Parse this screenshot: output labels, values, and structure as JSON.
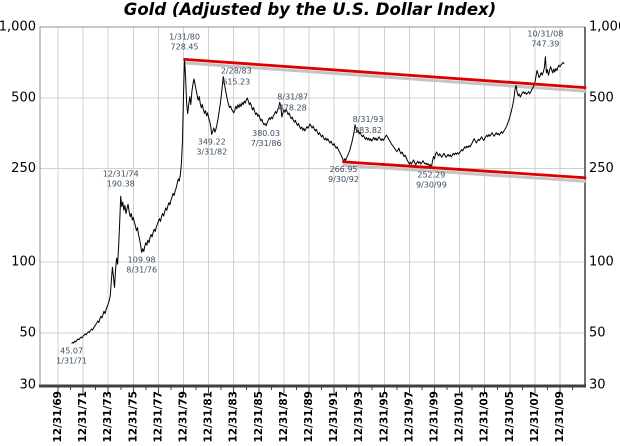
{
  "title": "Gold (Adjusted by the U.S. Dollar Index)",
  "colors": {
    "background": "#ffffff",
    "grid": "#d0d0d0",
    "frame": "#909090",
    "axis_bottom": "#404040",
    "axis_right": "#707070",
    "tick": "#404040",
    "price_line": "#000000",
    "trend_line": "#dd0000",
    "trend_shadow": "#c4c4c4",
    "annotation_text": "#3e4e63",
    "axis_text": "#000000"
  },
  "y_axis": {
    "scale": "log",
    "min": 30,
    "max": 1000,
    "tick_values": [
      1000,
      500,
      250,
      100,
      50,
      30
    ],
    "tick_labels": [
      "1,000",
      "500",
      "250",
      "100",
      "50",
      "30"
    ]
  },
  "x_axis": {
    "first_tick_year": 1970,
    "tick_interval_years": 2,
    "minor_tick_interval_years": 1,
    "tick_labels": [
      "12/31/69",
      "12/31/71",
      "12/31/73",
      "12/31/75",
      "12/31/77",
      "12/31/79",
      "12/31/81",
      "12/31/83",
      "12/31/85",
      "12/31/87",
      "12/31/89",
      "12/31/91",
      "12/31/93",
      "12/31/95",
      "12/31/97",
      "12/31/99",
      "12/31/01",
      "12/31/03",
      "12/31/05",
      "12/31/07",
      "12/31/09"
    ]
  },
  "chart_data": {
    "type": "line",
    "title": "Gold (Adjusted by the U.S. Dollar Index)",
    "xlabel": "",
    "ylabel": "",
    "ylim": [
      30,
      1000
    ],
    "y_scale": "log",
    "grid": true,
    "series": [
      {
        "name": "Gold adjusted by U.S. Dollar Index",
        "frequency": "monthly",
        "start_decimal_year": 1971.0833,
        "step_years": 0.0833333,
        "values": [
          45.07,
          45.6,
          45.2,
          46.1,
          45.8,
          46.5,
          47.1,
          46.7,
          47.4,
          48.0,
          47.6,
          48.4,
          48.9,
          49.5,
          49.0,
          49.9,
          50.6,
          50.2,
          51.1,
          51.9,
          51.4,
          52.5,
          53.3,
          54.1,
          55.0,
          56.2,
          55.3,
          57.2,
          58.8,
          57.8,
          59.8,
          61.8,
          60.4,
          62.8,
          64.8,
          66.4,
          68.5,
          72.0,
          83.0,
          95.0,
          87.0,
          78.0,
          92.0,
          104.0,
          98.0,
          118.0,
          148.0,
          190.38,
          172,
          180,
          166,
          174,
          161,
          169,
          176,
          164,
          156,
          161,
          151,
          155,
          148,
          143,
          136,
          140,
          131,
          125,
          118,
          109.98,
          114,
          111,
          117,
          121,
          118,
          124,
          121,
          127,
          131,
          128,
          134,
          138,
          135,
          141,
          145,
          149,
          153,
          149,
          156,
          161,
          157,
          164,
          170,
          166,
          173,
          179,
          175,
          183,
          189,
          196,
          192,
          200,
          207,
          216,
          226,
          221,
          236,
          262,
          330,
          512,
          728.45,
          610,
          475,
          428,
          468,
          505,
          468,
          532,
          570,
          601,
          572,
          543,
          514,
          488,
          506,
          474,
          453,
          469,
          444,
          429,
          441,
          419,
          431,
          411,
          399,
          378,
          349.22,
          361,
          372,
          357,
          367,
          386,
          406,
          436,
          466,
          502,
          556,
          615.23,
          576,
          546,
          514,
          489,
          469,
          454,
          461,
          447,
          439,
          431,
          441,
          461,
          449,
          467,
          454,
          471,
          459,
          477,
          467,
          484,
          474,
          489,
          499,
          484,
          467,
          477,
          459,
          444,
          454,
          437,
          424,
          431,
          417,
          424,
          411,
          399,
          405,
          391,
          384,
          389,
          380.03,
          391,
          401,
          411,
          404,
          414,
          407,
          419,
          427,
          437,
          429,
          444,
          454,
          478.28,
          461,
          414,
          431,
          444,
          434,
          447,
          437,
          424,
          431,
          417,
          407,
          414,
          401,
          394,
          401,
          389,
          381,
          389,
          377,
          369,
          376,
          364,
          371,
          361,
          369,
          377,
          371,
          379,
          387,
          379,
          372,
          379,
          369,
          361,
          367,
          357,
          349,
          355,
          347,
          341,
          347,
          337,
          331,
          337,
          329,
          335,
          327,
          321,
          327,
          319,
          314,
          319,
          311,
          305,
          309,
          301,
          295,
          289,
          283,
          277,
          266.95,
          275,
          271,
          278,
          284,
          291,
          299,
          311,
          323,
          339,
          356,
          383.82,
          369,
          357,
          364,
          351,
          357,
          347,
          341,
          347,
          339,
          333,
          339,
          331,
          337,
          329,
          335,
          327,
          333,
          339,
          331,
          337,
          329,
          335,
          341,
          335,
          329,
          335,
          329,
          335,
          341,
          347,
          341,
          335,
          329,
          323,
          317,
          313,
          309,
          304,
          299,
          295,
          299,
          305,
          295,
          289,
          294,
          287,
          281,
          285,
          277,
          271,
          266,
          261,
          266,
          261,
          267,
          272,
          265,
          259,
          264,
          269,
          263,
          267,
          261,
          265,
          270,
          265,
          261,
          264,
          259,
          262,
          257,
          260,
          252.29,
          268,
          281,
          275,
          287,
          294,
          288,
          283,
          289,
          284,
          279,
          285,
          290,
          284,
          279,
          283,
          287,
          282,
          286,
          280,
          285,
          290,
          286,
          291,
          287,
          292,
          288,
          292,
          296,
          301,
          297,
          304,
          310,
          305,
          311,
          307,
          313,
          309,
          315,
          321,
          329,
          335,
          327,
          321,
          327,
          333,
          329,
          335,
          341,
          335,
          329,
          335,
          341,
          347,
          341,
          349,
          343,
          349,
          355,
          349,
          343,
          349,
          355,
          349,
          353,
          347,
          353,
          359,
          353,
          359,
          365,
          371,
          379,
          389,
          401,
          414,
          429,
          449,
          469,
          499,
          544,
          564,
          529,
          509,
          519,
          504,
          514,
          524,
          531,
          521,
          527,
          517,
          524,
          531,
          521,
          529,
          541,
          551,
          564,
          579,
          614,
          654,
          634,
          609,
          621,
          639,
          624,
          644,
          669,
          747.39,
          638,
          658,
          623,
          653,
          678,
          658,
          638,
          663,
          643,
          666,
          653,
          673,
          688,
          678,
          690,
          698,
          706,
          699
        ]
      }
    ],
    "trend_lines": [
      {
        "name": "upper-resistance",
        "from_year": 1980.083,
        "from_value": 728.45,
        "to_year": 2012.0,
        "to_value": 552.0
      },
      {
        "name": "lower-support",
        "from_year": 1992.75,
        "from_value": 266.95,
        "to_year": 2012.0,
        "to_value": 228.5
      }
    ],
    "annotations": [
      {
        "t1": "1/31/80",
        "t2": "728.45",
        "year": 1980.083,
        "value": 728.45,
        "pos": "above"
      },
      {
        "t1": "2/28/83",
        "t2": "615.23",
        "year": 1983.167,
        "value": 615.23,
        "pos": "right"
      },
      {
        "t1": "8/31/87",
        "t2": "478.28",
        "year": 1987.667,
        "value": 478.28,
        "pos": "right"
      },
      {
        "t1": "8/31/93",
        "t2": "383.82",
        "year": 1993.667,
        "value": 383.82,
        "pos": "right"
      },
      {
        "t1": "10/31/08",
        "t2": "747.39",
        "year": 2008.833,
        "value": 747.39,
        "pos": "above"
      },
      {
        "t1": "12/31/74",
        "t2": "190.38",
        "year": 1975.0,
        "value": 190.38,
        "pos": "above"
      },
      {
        "t1": "45.07",
        "t2": "1/31/71",
        "year": 1971.083,
        "value": 45.07,
        "pos": "below"
      },
      {
        "t1": "109.98",
        "t2": "8/31/76",
        "year": 1976.667,
        "value": 109.98,
        "pos": "below"
      },
      {
        "t1": "349.22",
        "t2": "3/31/82",
        "year": 1982.25,
        "value": 349.22,
        "pos": "below"
      },
      {
        "t1": "380.03",
        "t2": "7/31/86",
        "year": 1986.583,
        "value": 380.03,
        "pos": "below"
      },
      {
        "t1": "266.95",
        "t2": "9/30/92",
        "year": 1992.75,
        "value": 266.95,
        "pos": "below"
      },
      {
        "t1": "252.29",
        "t2": "9/30/99",
        "year": 1999.75,
        "value": 252.29,
        "pos": "below"
      }
    ]
  }
}
